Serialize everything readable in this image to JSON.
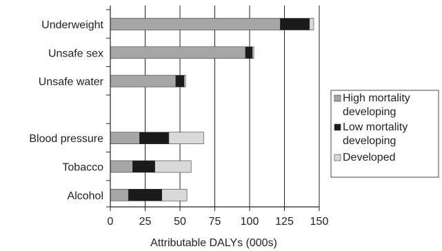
{
  "chart_data": {
    "type": "bar",
    "orientation": "horizontal",
    "stacked": true,
    "categories": [
      "Underweight",
      "Unsafe sex",
      "Unsafe water",
      "",
      "Blood pressure",
      "Tobacco",
      "Alcohol"
    ],
    "series": [
      {
        "name": "High mortality developing",
        "color": "#a6a6a6",
        "values": [
          122,
          97,
          47,
          null,
          21,
          16,
          13
        ]
      },
      {
        "name": "Low mortality developing",
        "color": "#1a1a1a",
        "values": [
          21,
          5,
          6,
          null,
          21,
          16,
          24
        ]
      },
      {
        "name": "Developed",
        "color": "#d9d9d9",
        "values": [
          3,
          1,
          1,
          null,
          25,
          26,
          18
        ]
      }
    ],
    "xlabel": "Attributable DALYs (000s)",
    "ylabel": "",
    "title": "",
    "xlim": [
      0,
      150
    ],
    "xticks": [
      0,
      25,
      50,
      75,
      100,
      125,
      150
    ],
    "grid": "vertical",
    "legend_position": "right"
  }
}
